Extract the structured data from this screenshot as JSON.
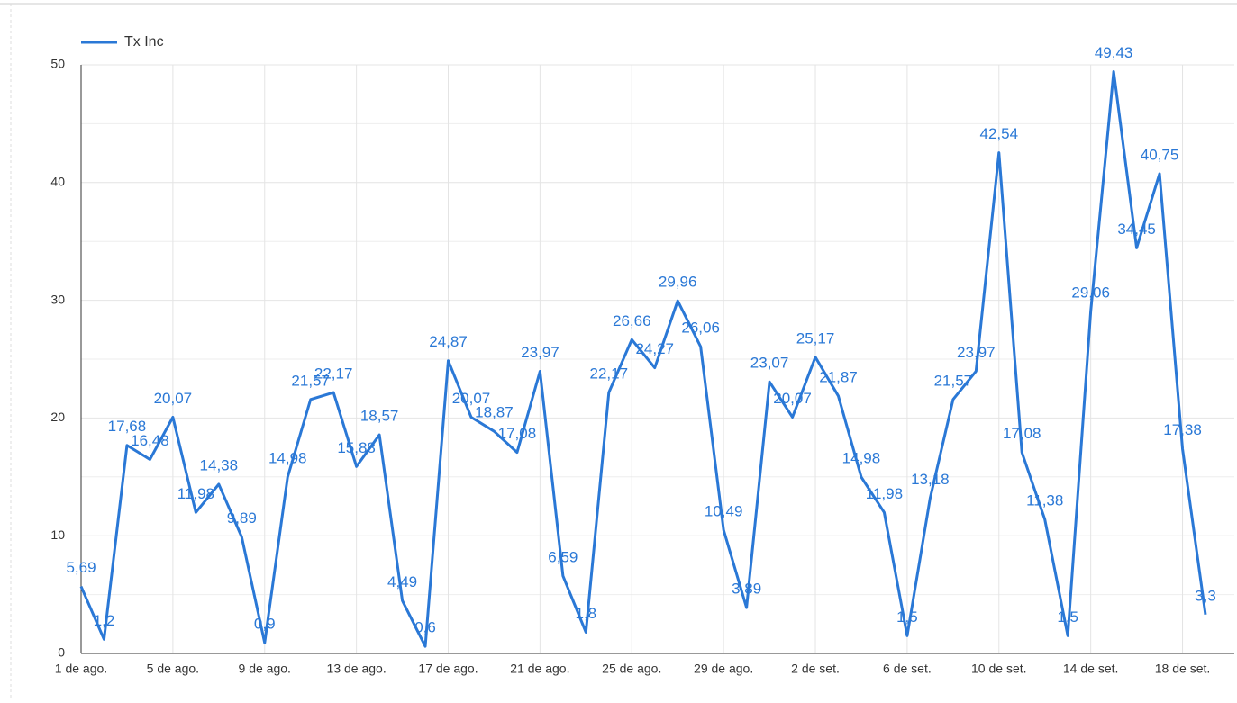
{
  "chart_data": {
    "type": "line",
    "categories": [
      "1 de ago.",
      null,
      null,
      null,
      "5 de ago.",
      null,
      null,
      null,
      "9 de ago.",
      null,
      null,
      null,
      "13 de ago.",
      null,
      null,
      null,
      "17 de ago.",
      null,
      null,
      null,
      "21 de ago.",
      null,
      null,
      null,
      "25 de ago.",
      null,
      null,
      null,
      "29 de ago.",
      null,
      null,
      null,
      "2 de set.",
      null,
      null,
      null,
      "6 de set.",
      null,
      null,
      null,
      "10 de set.",
      null,
      null,
      null,
      "14 de set.",
      null,
      null,
      null,
      "18 de set.",
      null
    ],
    "series": [
      {
        "name": "Tx Inc",
        "color": "#2a78d6",
        "values": [
          5.69,
          1.2,
          17.68,
          16.48,
          20.07,
          11.98,
          14.38,
          9.89,
          0.9,
          14.98,
          21.57,
          22.17,
          15.88,
          18.57,
          4.49,
          0.6,
          24.87,
          20.07,
          18.87,
          17.08,
          23.97,
          6.59,
          1.8,
          22.17,
          26.66,
          24.27,
          29.96,
          26.06,
          10.49,
          3.89,
          23.07,
          20.07,
          25.17,
          21.87,
          14.98,
          11.98,
          1.5,
          13.18,
          21.57,
          23.97,
          42.54,
          17.08,
          11.38,
          1.5,
          29.06,
          49.43,
          34.45,
          40.75,
          17.38,
          3.3
        ],
        "value_labels": [
          "5,69",
          "1,2",
          "17,68",
          "16,48",
          "20,07",
          "11,98",
          "14,38",
          "9,89",
          "0,9",
          "14,98",
          "21,57",
          "22,17",
          "15,88",
          "18,57",
          "4,49",
          "0,6",
          "24,87",
          "20,07",
          "18,87",
          "17,08",
          "23,97",
          "6,59",
          "1,8",
          "22,17",
          "26,66",
          "24,27",
          "29,96",
          "26,06",
          "10,49",
          "3,89",
          "23,07",
          "20,07",
          "25,17",
          "21,87",
          "14,98",
          "11,98",
          "1,5",
          "13,18",
          "21,57",
          "23,97",
          "42,54",
          "17,08",
          "11,38",
          "1,5",
          "29,06",
          "49,43",
          "34,45",
          "40,75",
          "17,38",
          "3,3"
        ]
      }
    ],
    "ylim": [
      0,
      50
    ],
    "yticks": [
      0,
      10,
      20,
      30,
      40,
      50
    ],
    "grid": true
  }
}
